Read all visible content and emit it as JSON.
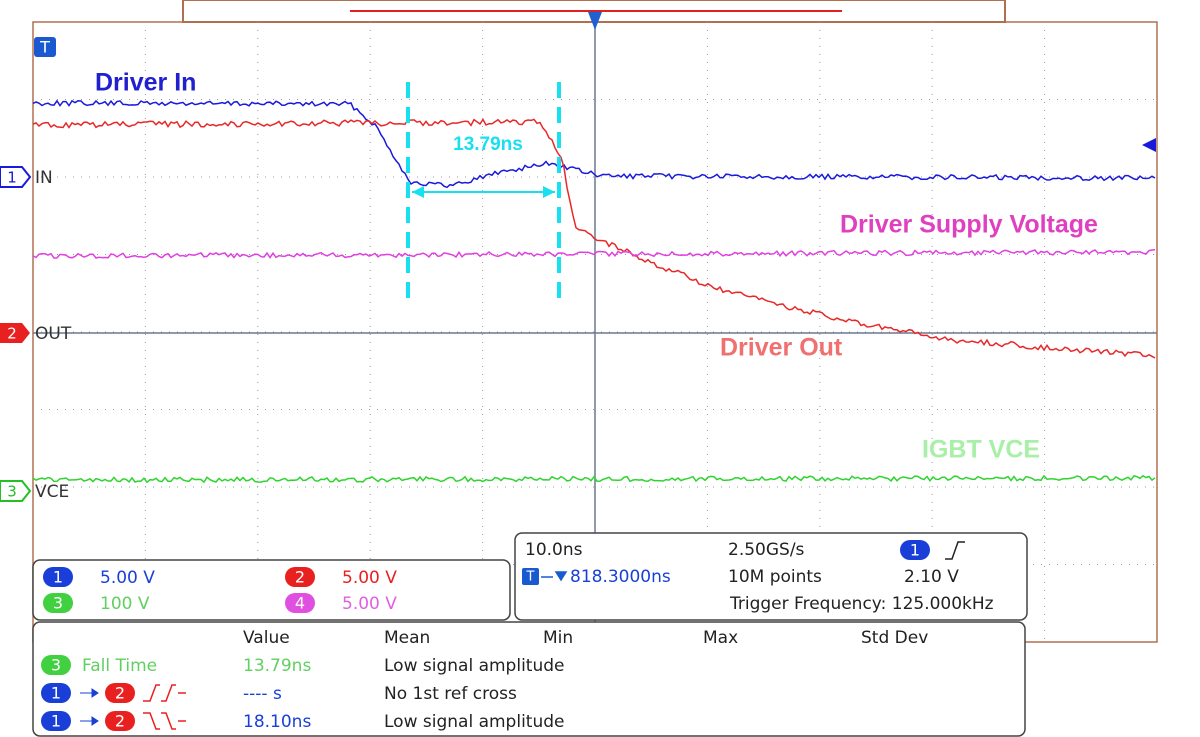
{
  "annotations": {
    "driver_in": "Driver In",
    "fall_cursor": "13.79ns",
    "driver_supply": "Driver Supply Voltage",
    "driver_out": "Driver Out",
    "igbt_vce": "IGBT VCE"
  },
  "trigger_badge": "T",
  "markers": [
    {
      "badge": "1",
      "label": "IN"
    },
    {
      "badge": "2",
      "label": "OUT"
    },
    {
      "badge": "3",
      "label": "VCE"
    }
  ],
  "channels": [
    {
      "badge": "1",
      "scale": "5.00 V"
    },
    {
      "badge": "2",
      "scale": "5.00 V"
    },
    {
      "badge": "3",
      "scale": "100 V"
    },
    {
      "badge": "4",
      "scale": "5.00 V"
    }
  ],
  "timebase": {
    "horizontal": "10.0ns",
    "sample_rate": "2.50GS/s",
    "trigger_source": "1",
    "delay_icon": "T",
    "delay": "818.3000ns",
    "record": "10M points",
    "trigger_level": "2.10 V",
    "trigger_frequency": "Trigger Frequency: 125.000kHz"
  },
  "measurements": {
    "headers": [
      "Value",
      "Mean",
      "Min",
      "Max",
      "Std Dev"
    ],
    "rows": [
      {
        "badges": [
          "3"
        ],
        "name": "Fall Time",
        "value": "13.79ns",
        "mean": "Low signal amplitude"
      },
      {
        "badges": [
          "1",
          "2"
        ],
        "value": "---- s",
        "mean": "No 1st ref cross"
      },
      {
        "badges": [
          "1",
          "2"
        ],
        "value": "18.10ns",
        "mean": "Low signal amplitude"
      }
    ]
  }
}
